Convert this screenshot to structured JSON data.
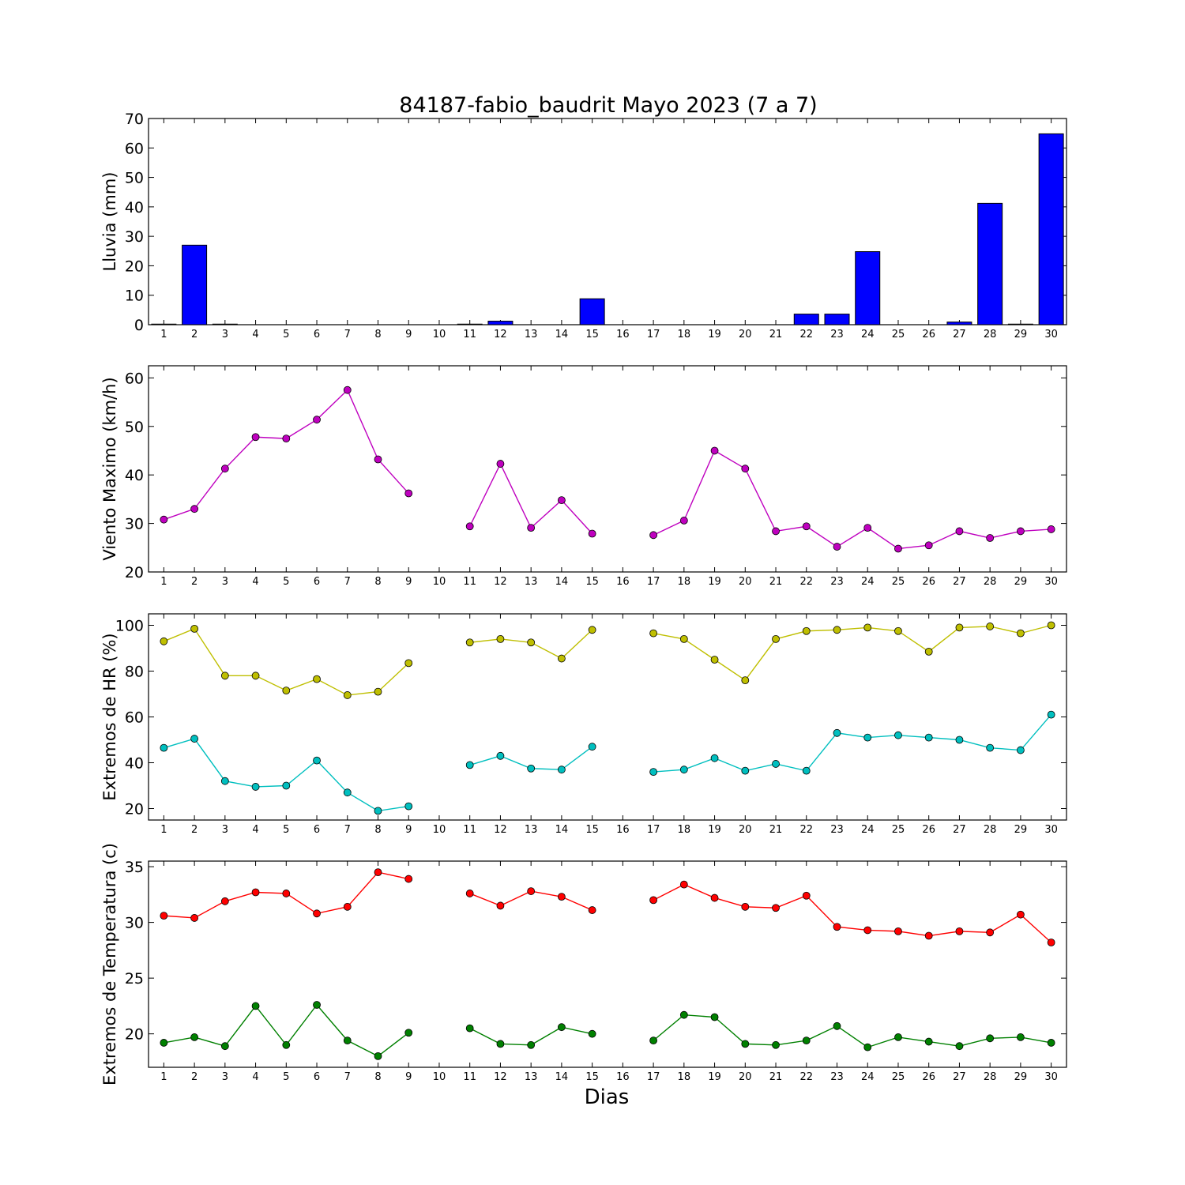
{
  "title": "84187-fabio_baudrit Mayo 2023  (7 a 7)",
  "xlabel": "Dias",
  "days": [
    1,
    2,
    3,
    4,
    5,
    6,
    7,
    8,
    9,
    10,
    11,
    12,
    13,
    14,
    15,
    16,
    17,
    18,
    19,
    20,
    21,
    22,
    23,
    24,
    25,
    26,
    27,
    28,
    29,
    30
  ],
  "chart_data": [
    {
      "type": "bar",
      "ylabel": "Lluvia (mm)",
      "ylim": [
        0,
        70
      ],
      "yticks": [
        0,
        10,
        20,
        30,
        40,
        50,
        60,
        70
      ],
      "grid": false,
      "series": [
        {
          "color": "#0000ff",
          "values": [
            0.2,
            27,
            0.2,
            0,
            0,
            0,
            0,
            0,
            0,
            0,
            0.2,
            1.2,
            0,
            0,
            8.8,
            0,
            0,
            0,
            0,
            0,
            0,
            3.6,
            3.6,
            24.8,
            0,
            0,
            0.9,
            41.2,
            0.2,
            64.8
          ]
        }
      ]
    },
    {
      "type": "line",
      "ylabel": "Viento Maximo (km/h)",
      "ylim": [
        20,
        62.5
      ],
      "yticks": [
        20,
        30,
        40,
        50,
        60
      ],
      "grid": false,
      "series": [
        {
          "color": "#bf00bf",
          "values": [
            30.8,
            33.0,
            41.3,
            47.8,
            47.5,
            51.4,
            57.5,
            43.2,
            36.2,
            null,
            29.4,
            42.3,
            29.1,
            34.8,
            27.9,
            null,
            27.6,
            30.6,
            45.0,
            41.3,
            28.4,
            29.4,
            25.2,
            29.1,
            24.8,
            25.5,
            28.4,
            27.0,
            28.4,
            28.8
          ]
        }
      ]
    },
    {
      "type": "line",
      "ylabel": "Extremos de HR (%)",
      "ylim": [
        15,
        105
      ],
      "yticks": [
        20,
        40,
        60,
        80,
        100
      ],
      "grid": false,
      "series": [
        {
          "color": "#bfbf00",
          "values": [
            93,
            98.5,
            78,
            78,
            71.5,
            76.5,
            69.5,
            71,
            83.5,
            null,
            92.5,
            94,
            92.5,
            85.5,
            98,
            null,
            96.5,
            94,
            85,
            76,
            94,
            97.5,
            98,
            99,
            97.5,
            88.5,
            99,
            99.5,
            96.5,
            100
          ]
        },
        {
          "color": "#00bfbf",
          "values": [
            46.5,
            50.5,
            32,
            29.5,
            30,
            41,
            27,
            19,
            21,
            null,
            39,
            43,
            37.5,
            37,
            47,
            null,
            36,
            37,
            42,
            36.5,
            39.5,
            36.5,
            53,
            51,
            52,
            51,
            50,
            46.5,
            45.5,
            61
          ]
        }
      ]
    },
    {
      "type": "line",
      "ylabel": "Extremos de Temperatura (c)",
      "ylim": [
        17,
        35.5
      ],
      "yticks": [
        20,
        25,
        30,
        35
      ],
      "grid": false,
      "series": [
        {
          "color": "#ff0000",
          "values": [
            30.6,
            30.4,
            31.9,
            32.7,
            32.6,
            30.8,
            31.4,
            34.5,
            33.9,
            null,
            32.6,
            31.5,
            32.8,
            32.3,
            31.1,
            null,
            32.0,
            33.4,
            32.2,
            31.4,
            31.3,
            32.4,
            29.6,
            29.3,
            29.2,
            28.8,
            29.2,
            29.1,
            30.7,
            28.2
          ]
        },
        {
          "color": "#008000",
          "values": [
            19.2,
            19.7,
            18.9,
            22.5,
            19.0,
            22.6,
            19.4,
            18.0,
            20.1,
            null,
            20.5,
            19.1,
            19.0,
            20.6,
            20.0,
            null,
            19.4,
            21.7,
            21.5,
            19.1,
            19.0,
            19.4,
            20.7,
            18.8,
            19.7,
            19.3,
            18.9,
            19.6,
            19.7,
            19.2
          ]
        }
      ]
    }
  ]
}
